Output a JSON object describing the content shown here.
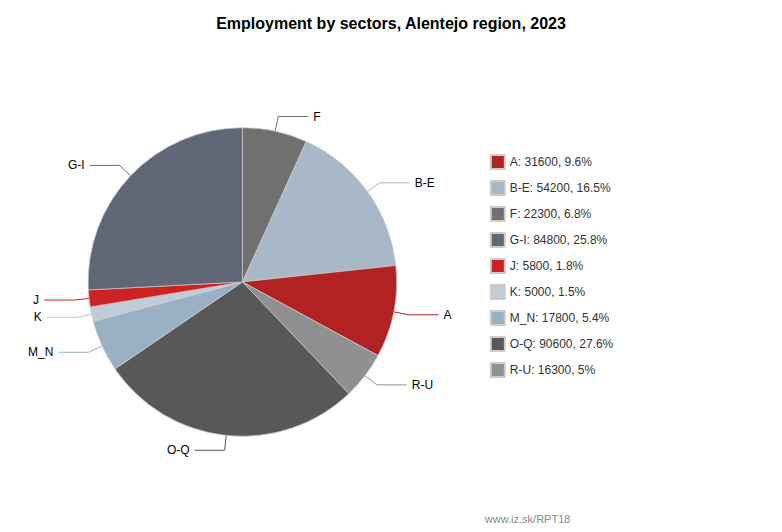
{
  "chart_data": {
    "type": "pie",
    "title": "Employment by sectors, Alentejo region, 2023",
    "categories": [
      "F",
      "B-E",
      "A",
      "R-U",
      "O-Q",
      "M_N",
      "K",
      "J",
      "G-I"
    ],
    "values": [
      22300,
      54200,
      31600,
      16300,
      90600,
      17800,
      5000,
      5800,
      84800
    ],
    "colors": [
      "#707070",
      "#a8b8c8",
      "#b22222",
      "#909090",
      "#585858",
      "#9ab0c4",
      "#c0ccd8",
      "#cc2222",
      "#606878"
    ],
    "legend": "right",
    "legend_entries": [
      {
        "category": "A",
        "label": "A: 31600, 9.6%"
      },
      {
        "category": "B-E",
        "label": "B-E: 54200, 16.5%"
      },
      {
        "category": "F",
        "label": "F: 22300, 6.8%"
      },
      {
        "category": "G-I",
        "label": "G-I: 84800, 25.8%"
      },
      {
        "category": "J",
        "label": "J: 5800, 1.8%"
      },
      {
        "category": "K",
        "label": "K: 5000, 1.5%"
      },
      {
        "category": "M_N",
        "label": "M_N: 17800, 5.4%"
      },
      {
        "category": "O-Q",
        "label": "O-Q: 90600, 27.6%"
      },
      {
        "category": "R-U",
        "label": "R-U: 16300, 5%"
      }
    ],
    "annotations": [
      "www.iz.sk/RPT18"
    ]
  }
}
